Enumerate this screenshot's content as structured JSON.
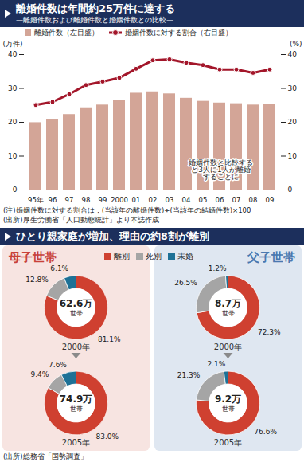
{
  "chart_data": [
    {
      "type": "bar",
      "title": "離婚件数は年間約25万件に達する",
      "subtitle": "—離婚件数および離婚件数と婚姻件数との比較—",
      "categories": [
        "95年",
        "96",
        "97",
        "98",
        "99",
        "2000",
        "01",
        "02",
        "03",
        "04",
        "05",
        "06",
        "07",
        "08",
        "09"
      ],
      "series": [
        {
          "name": "離婚件数（左目盛）",
          "type": "bar",
          "color": "#d3a597",
          "values": [
            19.9,
            20.7,
            22.3,
            24.3,
            25.1,
            26.4,
            28.6,
            29.0,
            28.4,
            27.1,
            26.2,
            25.7,
            25.5,
            25.1,
            25.3
          ]
        },
        {
          "name": "婚姻件数に対する割合（右目盛）",
          "type": "line",
          "axis": "y2",
          "color": "#a3162a",
          "marker": "circle",
          "values": [
            25.1,
            26.0,
            28.3,
            31.0,
            32.0,
            33.1,
            35.8,
            38.3,
            38.6,
            37.6,
            36.9,
            35.6,
            35.6,
            34.6,
            35.6
          ]
        }
      ],
      "y_label": "(万件)",
      "y2_label": "(%)",
      "ylim": [
        0,
        40
      ],
      "yticks": [
        0,
        10,
        20,
        30,
        40
      ],
      "y2lim": [
        0,
        40
      ],
      "y2ticks": [
        0,
        10,
        20,
        30,
        40
      ],
      "grid": false,
      "legend": "top-left",
      "annotations": [
        "婚姻件数と比較する\nと3人に1人が離婚\nすることに"
      ],
      "notes": [
        "(注)婚姻件数に対する割合は，(当該年の離婚件数)÷(当該年の結婚件数)×100",
        "(出所)厚生労働省「人口動態統計」より本誌作成"
      ]
    },
    {
      "type": "pie",
      "title": "ひとり親家庭が増加、理由の約8割が離別",
      "categories": [
        "離別",
        "死別",
        "未婚"
      ],
      "colors": [
        "#cf4030",
        "#a5a5a5",
        "#1e7196"
      ],
      "legend": "top",
      "data_labels": true,
      "groups": [
        {
          "name": "母子世帯",
          "color": "#c8413a",
          "pies": [
            {
              "title": "2000年",
              "center_text": [
                "62.6万",
                "世帯"
              ],
              "values": [
                81.1,
                12.8,
                6.1
              ],
              "value_labels": [
                "81.1%",
                "12.8%",
                "6.1%"
              ]
            },
            {
              "title": "2005年",
              "center_text": [
                "74.9万",
                "世帯"
              ],
              "values": [
                83.0,
                9.4,
                7.6
              ],
              "value_labels": [
                "83.0%",
                "9.4%",
                "7.6%"
              ]
            }
          ]
        },
        {
          "name": "父子世帯",
          "color": "#4a78b0",
          "pies": [
            {
              "title": "2000年",
              "center_text": [
                "8.7万",
                "世帯"
              ],
              "values": [
                72.3,
                26.5,
                1.2
              ],
              "value_labels": [
                "72.3%",
                "26.5%",
                "1.2%"
              ]
            },
            {
              "title": "2005年",
              "center_text": [
                "9.2万",
                "世帯"
              ],
              "values": [
                76.6,
                21.3,
                2.1
              ],
              "value_labels": [
                "76.6%",
                "21.3%",
                "2.1%"
              ]
            }
          ]
        }
      ],
      "source": "(出所)総務省「国勢調査」"
    }
  ]
}
